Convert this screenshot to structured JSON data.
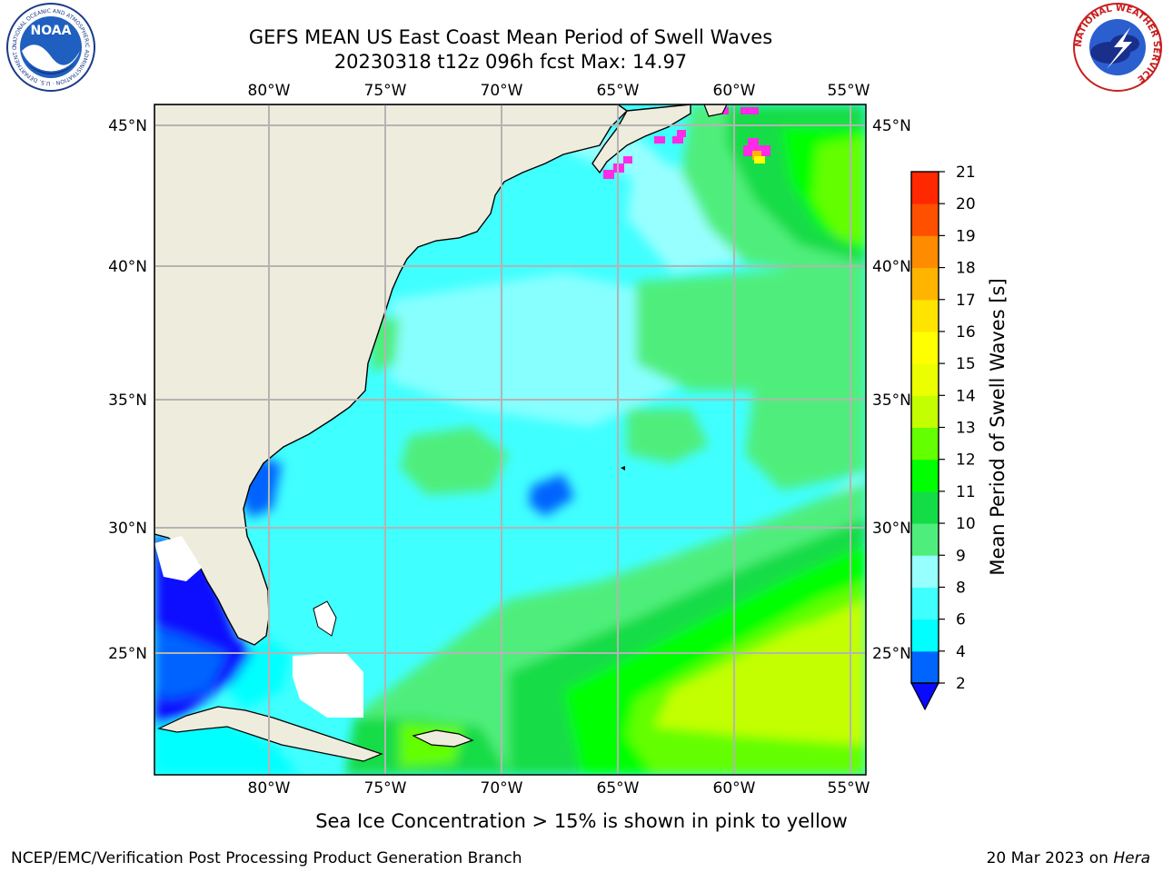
{
  "title": {
    "line1": "GEFS MEAN US East Coast Mean Period of Swell Waves",
    "line2": "20230318 t12z 096h fcst   Max: 14.97"
  },
  "map": {
    "lon_labels": [
      "80°W",
      "75°W",
      "70°W",
      "65°W",
      "60°W",
      "55°W"
    ],
    "lat_labels": [
      "45°N",
      "40°N",
      "35°N",
      "30°N",
      "25°N"
    ],
    "colors": {
      "land": "#eeecdc",
      "c2": "#0a0aff",
      "c4": "#0064ff",
      "c6": "#00ffff",
      "c8": "#40ffff",
      "c9": "#98ffff",
      "c10": "#4fee7c",
      "c11": "#14dc46",
      "c12": "#00ff00",
      "c13": "#64ff00",
      "c14": "#c3ff00",
      "c15": "#ebff00",
      "ice": "#ff2ae8",
      "grid": "#b4b4b4"
    }
  },
  "colorbar": {
    "label": "Mean Period of Swell Waves [s]",
    "ticks": [
      "2",
      "4",
      "6",
      "8",
      "9",
      "10",
      "11",
      "12",
      "13",
      "14",
      "15",
      "16",
      "17",
      "18",
      "19",
      "20",
      "21"
    ],
    "colors": [
      "#0064ff",
      "#00ffff",
      "#40ffff",
      "#98ffff",
      "#4fee7c",
      "#14dc46",
      "#00ff00",
      "#64ff00",
      "#c3ff00",
      "#ebff00",
      "#ffff00",
      "#ffe400",
      "#ffb400",
      "#ff8c00",
      "#ff5000",
      "#ff2800",
      "#ff0000"
    ],
    "extend_color": "#0a0aff"
  },
  "caption": "Sea Ice Concentration > 15% is shown in pink to yellow",
  "footer": {
    "left": "NCEP/EMC/Verification Post Processing Product Generation Branch",
    "right_prefix": "20 Mar 2023 on ",
    "right_italic": "Hera"
  },
  "logos": {
    "noaa_text": "NOAA",
    "noaa_ring_text": "NATIONAL OCEANIC AND ATMOSPHERIC ADMINISTRATION · U.S. DEPARTMENT OF COMMERCE",
    "nws_ring_text": "NATIONAL WEATHER SERVICE"
  }
}
